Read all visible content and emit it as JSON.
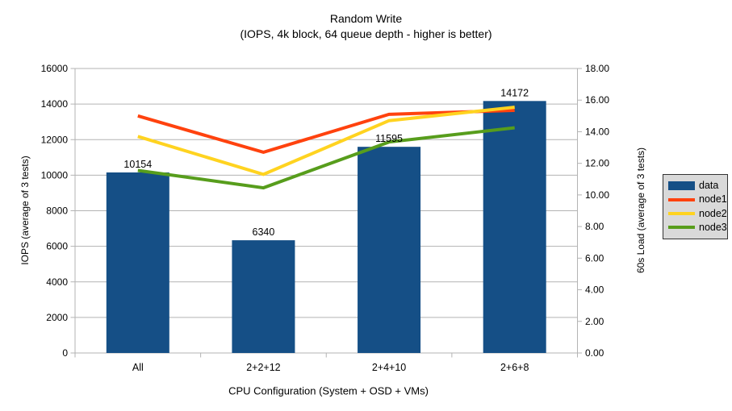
{
  "title": {
    "text": "Random Write",
    "subtitle": "(IOPS, 4k block, 64 queue depth - higher is better)"
  },
  "chart_data": {
    "type": "bar+line",
    "title": "Random Write",
    "subtitle": "(IOPS, 4k block, 64 queue depth - higher is better)",
    "categories": [
      "All",
      "2+2+12",
      "2+4+10",
      "2+6+8"
    ],
    "x_axis": {
      "title": "CPU Configuration (System + OSD + VMs)"
    },
    "left_axis": {
      "title": "IOPS (average of 3 tests)",
      "min": 0,
      "max": 16000,
      "step": 2000,
      "tick_labels": [
        "0",
        "2000",
        "4000",
        "6000",
        "8000",
        "10000",
        "12000",
        "14000",
        "16000"
      ]
    },
    "right_axis": {
      "title": "60s Load (average of 3 tests)",
      "min": 0,
      "max": 18,
      "step": 2,
      "tick_labels": [
        "0.00",
        "2.00",
        "4.00",
        "6.00",
        "8.00",
        "10.00",
        "12.00",
        "14.00",
        "16.00",
        "18.00"
      ]
    },
    "series": [
      {
        "name": "data",
        "type": "bar",
        "axis": "left",
        "color": "#154f86",
        "values": [
          10154,
          6340,
          11595,
          14172
        ],
        "data_labels": [
          "10154",
          "6340",
          "11595",
          "14172"
        ]
      },
      {
        "name": "node1",
        "type": "line",
        "axis": "right",
        "color": "#ff420e",
        "values": [
          15.0,
          12.7,
          15.1,
          15.35
        ]
      },
      {
        "name": "node2",
        "type": "line",
        "axis": "right",
        "color": "#ffd320",
        "values": [
          13.7,
          11.3,
          14.7,
          15.55
        ]
      },
      {
        "name": "node3",
        "type": "line",
        "axis": "right",
        "color": "#579d1c",
        "values": [
          11.55,
          10.45,
          13.35,
          14.25
        ]
      }
    ],
    "grid": true,
    "legend_position": "right"
  },
  "legend": {
    "items": [
      {
        "label": "data",
        "swatch": "rect",
        "color": "#154f86"
      },
      {
        "label": "node1",
        "swatch": "line",
        "color": "#ff420e"
      },
      {
        "label": "node2",
        "swatch": "line",
        "color": "#ffd320"
      },
      {
        "label": "node3",
        "swatch": "line",
        "color": "#579d1c"
      }
    ]
  },
  "colors": {
    "background": "#ffffff",
    "grid": "#b3b3b3",
    "axis": "#b3b3b3",
    "text": "#000000",
    "legend_bg": "#d9d9d9",
    "legend_border": "#333333"
  }
}
